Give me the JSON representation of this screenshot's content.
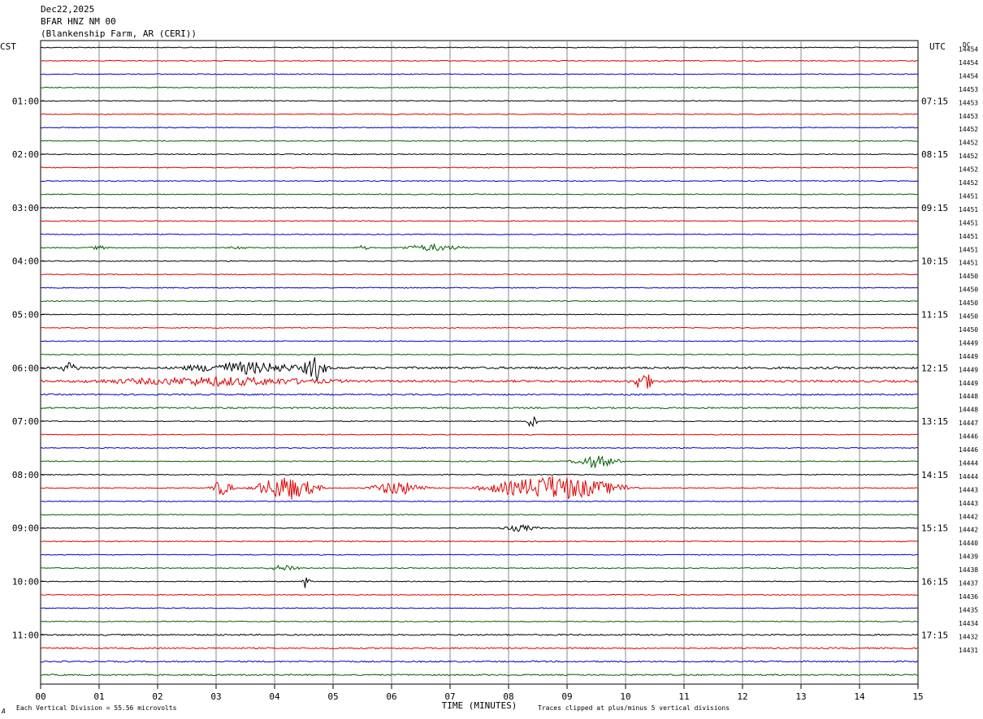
{
  "header": {
    "date": "Dec22,2025",
    "station": "BFAR HNZ NM 00",
    "location": "(Blankenship Farm, AR (CERI))"
  },
  "chart_data": {
    "type": "line",
    "title": "",
    "left_axis_label": "CST",
    "right_axis_label": "UTC",
    "dc_label": "DC",
    "xlabel": "TIME (MINUTES)",
    "xlim": [
      0,
      15
    ],
    "x_ticks": [
      "00",
      "01",
      "02",
      "03",
      "04",
      "05",
      "06",
      "07",
      "08",
      "09",
      "10",
      "11",
      "12",
      "13",
      "14",
      "15"
    ],
    "left_hour_labels": [
      "01:00",
      "02:00",
      "03:00",
      "04:00",
      "05:00",
      "06:00",
      "07:00",
      "08:00",
      "09:00",
      "10:00",
      "11:00"
    ],
    "right_hour_labels": [
      "07:15",
      "08:15",
      "09:15",
      "10:15",
      "11:15",
      "12:15",
      "13:15",
      "14:15",
      "15:15",
      "16:15",
      "17:15"
    ],
    "trace_colors": [
      "#000000",
      "#e00000",
      "#0000d0",
      "#006000"
    ],
    "trace_count": 48,
    "dc_values": [
      "14454",
      "14454",
      "14454",
      "14453",
      "14453",
      "14453",
      "14452",
      "14452",
      "14452",
      "14452",
      "14452",
      "14451",
      "14451",
      "14451",
      "14451",
      "14451",
      "14451",
      "14450",
      "14450",
      "14450",
      "14450",
      "14450",
      "14449",
      "14449",
      "14449",
      "14449",
      "14448",
      "14448",
      "14447",
      "14446",
      "14446",
      "14444",
      "14444",
      "14443",
      "14443",
      "14442",
      "14442",
      "14440",
      "14439",
      "14438",
      "14437",
      "14436",
      "14435",
      "14434",
      "14432",
      "14431"
    ],
    "events": [
      {
        "trace": 15,
        "minute": 1.0,
        "amp": 2.2,
        "dur": 0.2
      },
      {
        "trace": 15,
        "minute": 3.4,
        "amp": 2.0,
        "dur": 0.2
      },
      {
        "trace": 15,
        "minute": 5.5,
        "amp": 3.0,
        "dur": 0.15
      },
      {
        "trace": 15,
        "minute": 6.7,
        "amp": 4.0,
        "dur": 0.7
      },
      {
        "trace": 24,
        "minute": 0.5,
        "amp": 6.0,
        "dur": 0.2
      },
      {
        "trace": 24,
        "minute": 3.5,
        "amp": 7.0,
        "dur": 1.3
      },
      {
        "trace": 24,
        "minute": 4.7,
        "amp": 15.0,
        "dur": 0.25
      },
      {
        "trace": 25,
        "minute": 3.0,
        "amp": 5.0,
        "dur": 2.5
      },
      {
        "trace": 25,
        "minute": 10.3,
        "amp": 12.0,
        "dur": 0.25
      },
      {
        "trace": 28,
        "minute": 8.4,
        "amp": 10.0,
        "dur": 0.1
      },
      {
        "trace": 31,
        "minute": 9.5,
        "amp": 8.0,
        "dur": 0.5
      },
      {
        "trace": 33,
        "minute": 3.1,
        "amp": 10.0,
        "dur": 0.25
      },
      {
        "trace": 33,
        "minute": 4.2,
        "amp": 16.0,
        "dur": 0.7
      },
      {
        "trace": 33,
        "minute": 6.1,
        "amp": 9.0,
        "dur": 0.6
      },
      {
        "trace": 33,
        "minute": 8.8,
        "amp": 16.0,
        "dur": 1.5
      },
      {
        "trace": 36,
        "minute": 8.2,
        "amp": 4.0,
        "dur": 0.4
      },
      {
        "trace": 39,
        "minute": 4.2,
        "amp": 4.0,
        "dur": 0.4
      },
      {
        "trace": 40,
        "minute": 4.55,
        "amp": 11.0,
        "dur": 0.1
      }
    ]
  },
  "footer": {
    "vertical_division": "Each Vertical Division =   55.56 microvolts",
    "clipping": "Traces clipped at plus/minus 5 vertical divisions",
    "corner_mark": "A"
  }
}
